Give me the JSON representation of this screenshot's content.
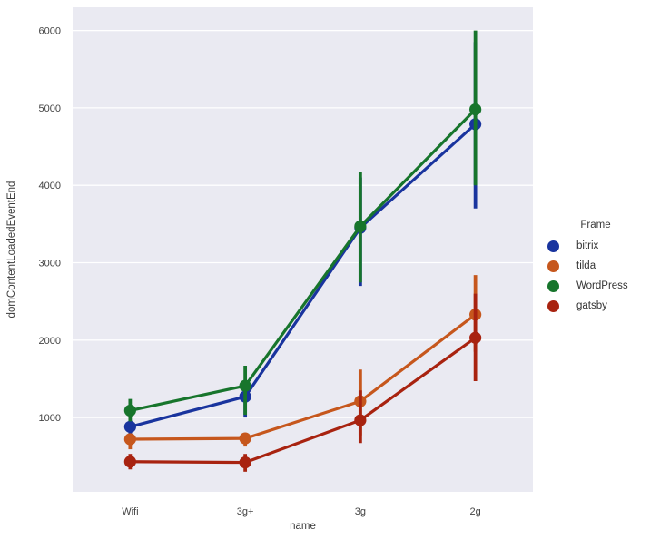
{
  "colors": {
    "figure_bg": "#ffffff",
    "plot_bg": "#eaeaf2",
    "grid": "#ffffff",
    "text": "#3b3b3b",
    "tick_text": "#444444"
  },
  "chart_data": {
    "type": "line",
    "title": "",
    "xlabel": "name",
    "ylabel": "domContentLoadedEventEnd",
    "categories": [
      "Wifi",
      "3g+",
      "3g",
      "2g"
    ],
    "yticks": [
      1000,
      2000,
      3000,
      4000,
      5000,
      6000
    ],
    "ylim": [
      40,
      6300
    ],
    "grid": true,
    "legend": {
      "title": "Frame",
      "position": "right"
    },
    "series": [
      {
        "name": "bitrix",
        "color": "#19349e",
        "values": [
          880,
          1270,
          3450,
          4790
        ],
        "ci_low": [
          790,
          1000,
          2700,
          3700
        ],
        "ci_high": [
          965,
          1480,
          4100,
          5850
        ]
      },
      {
        "name": "tilda",
        "color": "#c6571d",
        "values": [
          720,
          730,
          1210,
          2330
        ],
        "ci_low": [
          590,
          625,
          770,
          1850
        ],
        "ci_high": [
          790,
          800,
          1620,
          2840
        ]
      },
      {
        "name": "WordPress",
        "color": "#17752c",
        "values": [
          1090,
          1410,
          3470,
          4980
        ],
        "ci_low": [
          950,
          1035,
          2745,
          4000
        ],
        "ci_high": [
          1240,
          1670,
          4175,
          6000
        ]
      },
      {
        "name": "gatsby",
        "color": "#a82310",
        "values": [
          430,
          420,
          965,
          2030
        ],
        "ci_low": [
          330,
          300,
          670,
          1470
        ],
        "ci_high": [
          530,
          530,
          1350,
          2600
        ]
      }
    ]
  }
}
